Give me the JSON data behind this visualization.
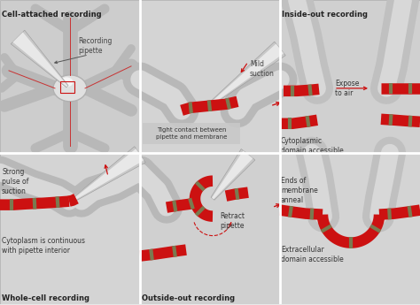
{
  "bg_color": "#e8e8e8",
  "red": "#cc1111",
  "dark_olive": "#7a7a50",
  "gray_light": "#c8c8c8",
  "gray_mid": "#b8b8b8",
  "gray_dark": "#a8a8a8",
  "white": "#ffffff",
  "text_dark": "#333333",
  "text_title": "#222222",
  "panel_divider": "#ffffff",
  "title_top_left": "Cell-attached recording",
  "title_top_right": "Inside-out recording",
  "title_bot_left": "Whole-cell recording",
  "title_bot_mid": "Outside-out recording",
  "lbl_recording_pipette": "Recording\npipette",
  "lbl_mild_suction": "Mild\nsuction",
  "lbl_tight_contact": "Tight contact between\npipette and membrane",
  "lbl_expose_to_air": "Expose\nto air",
  "lbl_cytoplasmic": "Cytoplasmic\ndomain accessible",
  "lbl_strong_pulse": "Strong\npulse of\nsuction",
  "lbl_cytoplasm_cont": "Cytoplasm is continuous\nwith pipette interior",
  "lbl_retract": "Retract\npipette",
  "lbl_ends_membrane": "Ends of\nmembrane\nanneal",
  "lbl_extracellular": "Extracellular\ndomain accessible"
}
